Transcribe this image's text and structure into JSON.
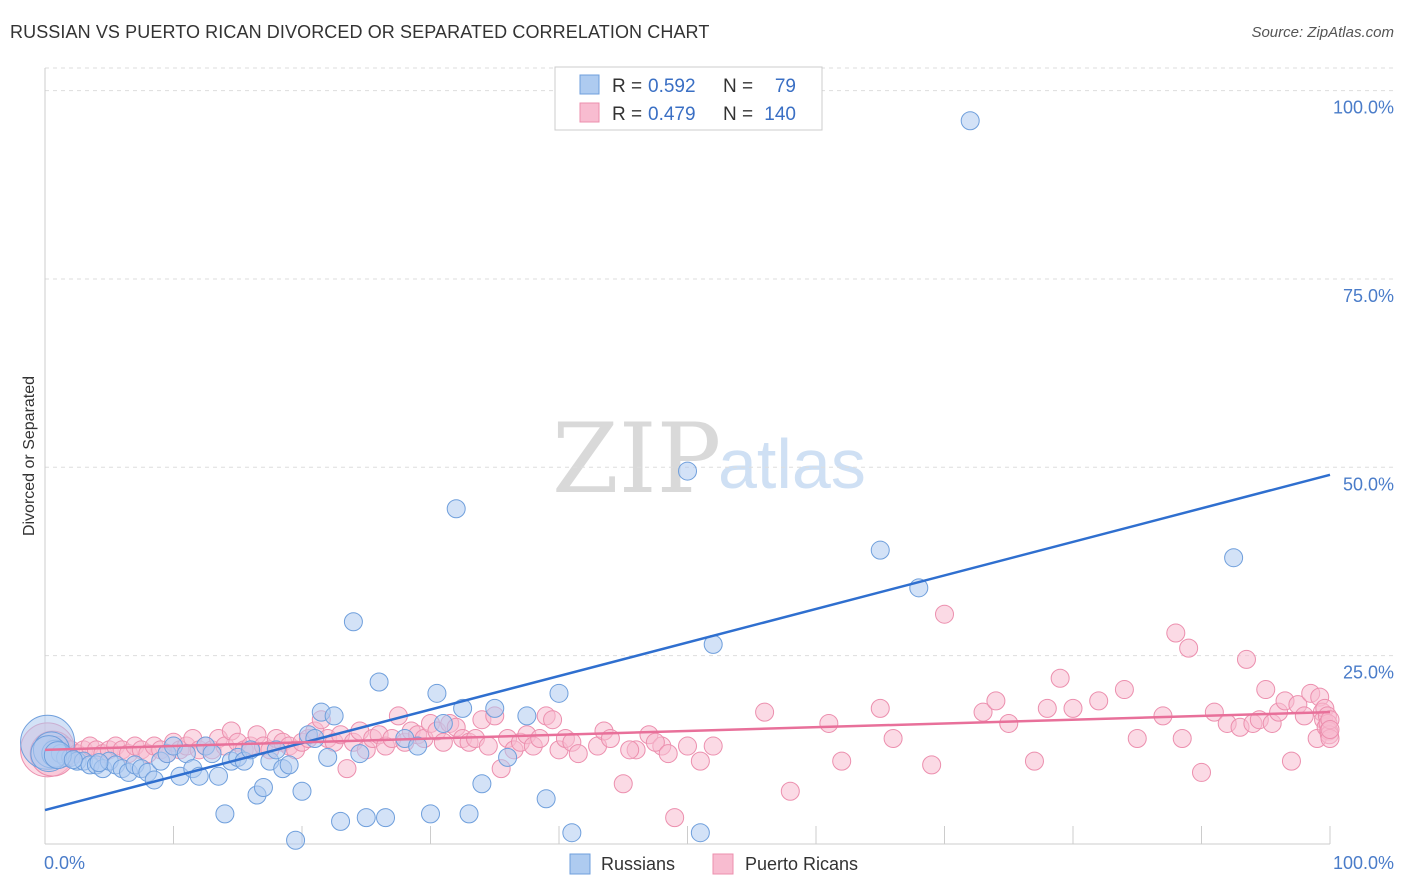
{
  "header": {
    "title": "RUSSIAN VS PUERTO RICAN DIVORCED OR SEPARATED CORRELATION CHART",
    "source": "Source: ZipAtlas.com"
  },
  "watermark": {
    "zip": "ZIP",
    "atlas": "atlas"
  },
  "legend": {
    "rows": [
      {
        "r_label": "R =",
        "r_value": "0.592",
        "n_label": "N =",
        "n_value": "79"
      },
      {
        "r_label": "R =",
        "r_value": "0.479",
        "n_label": "N =",
        "n_value": "140"
      }
    ]
  },
  "bottom_legend": {
    "russians": "Russians",
    "puerto_ricans": "Puerto Ricans"
  },
  "colors": {
    "russian_fill": "#aecbf0",
    "russian_stroke": "#6f9fdc",
    "russian_line": "#2f6fcf",
    "pr_fill": "#f8bcd0",
    "pr_stroke": "#ec8fae",
    "pr_line": "#e8709a",
    "grid": "#dddddd",
    "tick_text": "#4a7cc9"
  },
  "chart_data": {
    "type": "scatter",
    "title": "RUSSIAN VS PUERTO RICAN DIVORCED OR SEPARATED CORRELATION CHART",
    "xlabel": "",
    "ylabel": "Divorced or Separated",
    "xlim": [
      0,
      100
    ],
    "ylim": [
      0,
      103
    ],
    "x_tick_labels": [
      "0.0%",
      "100.0%"
    ],
    "y_ticks": [
      25,
      50,
      75,
      100
    ],
    "y_tick_labels": [
      "25.0%",
      "50.0%",
      "75.0%",
      "100.0%"
    ],
    "grid": true,
    "legend_position": "top-center",
    "series": [
      {
        "name": "Russians",
        "r": 0.592,
        "n": 79,
        "trend": [
          [
            0,
            4.5
          ],
          [
            100,
            49
          ]
        ],
        "points": [
          [
            0.2,
            13.5,
            3
          ],
          [
            0.5,
            12.5,
            2
          ],
          [
            0.8,
            12,
            1.5
          ],
          [
            1.2,
            12,
            1
          ],
          [
            1.6,
            11.5,
            1
          ],
          [
            2,
            11.5,
            1
          ],
          [
            2.5,
            11,
            1
          ],
          [
            3,
            11,
            1
          ],
          [
            3.5,
            10.5,
            1
          ],
          [
            4,
            10.5,
            1
          ],
          [
            4.5,
            10,
            1
          ],
          [
            5,
            11,
            1
          ],
          [
            5.5,
            10.5,
            1
          ],
          [
            6,
            10,
            1
          ],
          [
            6.5,
            9.5,
            1
          ],
          [
            7,
            10.5,
            1
          ],
          [
            7.5,
            10,
            1
          ],
          [
            8,
            9.5,
            1
          ],
          [
            8.5,
            8.5,
            1
          ],
          [
            9,
            11,
            1
          ],
          [
            9.5,
            12,
            1
          ],
          [
            10,
            13,
            1
          ],
          [
            10.5,
            9,
            1
          ],
          [
            11,
            12,
            1
          ],
          [
            11.5,
            10,
            1
          ],
          [
            12,
            9,
            1
          ],
          [
            12.5,
            13,
            1
          ],
          [
            13,
            12,
            1
          ],
          [
            13.5,
            9,
            1
          ],
          [
            14,
            4,
            1
          ],
          [
            14.5,
            11,
            1
          ],
          [
            15,
            11.5,
            1
          ],
          [
            15.5,
            11,
            1
          ],
          [
            16,
            12.5,
            1
          ],
          [
            16.5,
            6.5,
            1
          ],
          [
            17,
            7.5,
            1
          ],
          [
            17.5,
            11,
            1
          ],
          [
            18,
            12.5,
            1
          ],
          [
            18.5,
            10,
            1
          ],
          [
            19,
            10.5,
            1
          ],
          [
            19.5,
            0.5,
            1
          ],
          [
            20,
            7,
            1
          ],
          [
            20.5,
            14.5,
            1
          ],
          [
            21,
            14,
            1
          ],
          [
            21.5,
            17.5,
            1
          ],
          [
            22,
            11.5,
            1
          ],
          [
            22.5,
            17,
            1
          ],
          [
            23,
            3,
            1
          ],
          [
            24,
            29.5,
            1
          ],
          [
            24.5,
            12,
            1
          ],
          [
            25,
            3.5,
            1
          ],
          [
            26,
            21.5,
            1
          ],
          [
            26.5,
            3.5,
            1
          ],
          [
            28,
            14,
            1
          ],
          [
            29,
            13,
            1
          ],
          [
            30,
            4,
            1
          ],
          [
            30.5,
            20,
            1
          ],
          [
            31,
            16,
            1
          ],
          [
            32,
            44.5,
            1
          ],
          [
            32.5,
            18,
            1
          ],
          [
            33,
            4,
            1
          ],
          [
            34,
            8,
            1
          ],
          [
            35,
            18,
            1
          ],
          [
            36,
            11.5,
            1
          ],
          [
            37.5,
            17,
            1
          ],
          [
            39,
            6,
            1
          ],
          [
            40,
            20,
            1
          ],
          [
            41,
            1.5,
            1
          ],
          [
            50,
            49.5,
            1
          ],
          [
            51,
            1.5,
            1
          ],
          [
            52,
            26.5,
            1
          ],
          [
            65,
            39,
            1
          ],
          [
            68,
            34,
            1
          ],
          [
            72,
            96,
            1
          ],
          [
            92.5,
            38,
            1
          ],
          [
            0.3,
            12,
            2
          ],
          [
            1,
            11.8,
            1.5
          ],
          [
            2.2,
            11.2,
            1
          ],
          [
            4.2,
            10.8,
            1
          ]
        ]
      },
      {
        "name": "Puerto Ricans",
        "r": 0.479,
        "n": 140,
        "trend": [
          [
            0,
            12.5
          ],
          [
            100,
            17.5
          ]
        ],
        "points": [
          [
            0.2,
            12.5,
            3
          ],
          [
            0.6,
            12,
            2.5
          ],
          [
            1,
            12.5,
            1.5
          ],
          [
            1.5,
            13,
            1
          ],
          [
            2,
            12.5,
            1
          ],
          [
            2.5,
            12,
            1
          ],
          [
            3,
            12.5,
            1
          ],
          [
            3.5,
            13,
            1
          ],
          [
            4,
            12.5,
            1
          ],
          [
            4.5,
            12,
            1
          ],
          [
            5,
            12.5,
            1
          ],
          [
            5.5,
            13,
            1
          ],
          [
            6,
            12.5,
            1
          ],
          [
            6.5,
            12,
            1
          ],
          [
            7,
            13,
            1
          ],
          [
            7.5,
            12.5,
            1
          ],
          [
            8,
            12,
            1
          ],
          [
            8.5,
            13,
            1
          ],
          [
            9,
            12.5,
            1
          ],
          [
            9.5,
            12,
            1
          ],
          [
            10,
            13.5,
            1
          ],
          [
            10.5,
            12.5,
            1
          ],
          [
            11,
            13,
            1
          ],
          [
            11.5,
            14,
            1
          ],
          [
            12,
            12.5,
            1
          ],
          [
            12.5,
            13,
            1
          ],
          [
            13,
            12.5,
            1
          ],
          [
            13.5,
            14,
            1
          ],
          [
            14,
            13,
            1
          ],
          [
            14.5,
            15,
            1
          ],
          [
            15,
            13.5,
            1
          ],
          [
            15.5,
            12.5,
            1
          ],
          [
            16,
            13,
            1
          ],
          [
            16.5,
            14.5,
            1
          ],
          [
            17,
            13,
            1
          ],
          [
            17.5,
            12.5,
            1
          ],
          [
            18,
            14,
            1
          ],
          [
            18.5,
            13.5,
            1
          ],
          [
            19,
            13,
            1
          ],
          [
            19.5,
            12.5,
            1
          ],
          [
            20,
            13.5,
            1
          ],
          [
            20.5,
            14,
            1
          ],
          [
            21,
            15,
            1
          ],
          [
            21.5,
            16.5,
            1
          ],
          [
            22,
            14,
            1
          ],
          [
            22.5,
            13.5,
            1
          ],
          [
            23,
            14.5,
            1
          ],
          [
            23.5,
            10,
            1
          ],
          [
            24,
            13.5,
            1
          ],
          [
            24.5,
            15,
            1
          ],
          [
            25,
            12.5,
            1
          ],
          [
            25.5,
            14,
            1
          ],
          [
            26,
            14.5,
            1
          ],
          [
            26.5,
            13,
            1
          ],
          [
            27,
            14,
            1
          ],
          [
            27.5,
            17,
            1
          ],
          [
            28,
            13.5,
            1
          ],
          [
            28.5,
            15,
            1
          ],
          [
            29,
            14.5,
            1
          ],
          [
            29.5,
            14,
            1
          ],
          [
            30,
            16,
            1
          ],
          [
            30.5,
            15,
            1
          ],
          [
            31,
            13.5,
            1
          ],
          [
            31.5,
            16,
            1
          ],
          [
            32,
            15.5,
            1
          ],
          [
            32.5,
            14,
            1
          ],
          [
            33,
            13.5,
            1
          ],
          [
            33.5,
            14,
            1
          ],
          [
            34,
            16.5,
            1
          ],
          [
            34.5,
            13,
            1
          ],
          [
            35,
            17,
            1
          ],
          [
            35.5,
            10,
            1
          ],
          [
            36,
            14,
            1
          ],
          [
            36.5,
            12.5,
            1
          ],
          [
            37,
            13.5,
            1
          ],
          [
            37.5,
            14.5,
            1
          ],
          [
            38,
            13,
            1
          ],
          [
            38.5,
            14,
            1
          ],
          [
            39,
            17,
            1
          ],
          [
            39.5,
            16.5,
            1
          ],
          [
            40,
            12.5,
            1
          ],
          [
            40.5,
            14,
            1
          ],
          [
            41,
            13.5,
            1
          ],
          [
            41.5,
            12,
            1
          ],
          [
            43,
            13,
            1
          ],
          [
            43.5,
            15,
            1
          ],
          [
            44,
            14,
            1
          ],
          [
            45,
            8,
            1
          ],
          [
            46,
            12.5,
            1
          ],
          [
            47,
            14.5,
            1
          ],
          [
            48,
            13,
            1
          ],
          [
            49,
            3.5,
            1
          ],
          [
            51,
            11,
            1
          ],
          [
            52,
            13,
            1
          ],
          [
            56,
            17.5,
            1
          ],
          [
            58,
            7,
            1
          ],
          [
            61,
            16,
            1
          ],
          [
            62,
            11,
            1
          ],
          [
            65,
            18,
            1
          ],
          [
            66,
            14,
            1
          ],
          [
            69,
            10.5,
            1
          ],
          [
            70,
            30.5,
            1
          ],
          [
            73,
            17.5,
            1
          ],
          [
            74,
            19,
            1
          ],
          [
            75,
            16,
            1
          ],
          [
            77,
            11,
            1
          ],
          [
            78,
            18,
            1
          ],
          [
            79,
            22,
            1
          ],
          [
            80,
            18,
            1
          ],
          [
            82,
            19,
            1
          ],
          [
            84,
            20.5,
            1
          ],
          [
            85,
            14,
            1
          ],
          [
            87,
            17,
            1
          ],
          [
            88,
            28,
            1
          ],
          [
            88.5,
            14,
            1
          ],
          [
            89,
            26,
            1
          ],
          [
            90,
            9.5,
            1
          ],
          [
            91,
            17.5,
            1
          ],
          [
            92,
            16,
            1
          ],
          [
            93,
            15.5,
            1
          ],
          [
            93.5,
            24.5,
            1
          ],
          [
            94,
            16,
            1
          ],
          [
            94.5,
            16.5,
            1
          ],
          [
            95,
            20.5,
            1
          ],
          [
            95.5,
            16,
            1
          ],
          [
            96,
            17.5,
            1
          ],
          [
            96.5,
            19,
            1
          ],
          [
            97,
            11,
            1
          ],
          [
            97.5,
            18.5,
            1
          ],
          [
            98,
            17,
            1
          ],
          [
            98.5,
            20,
            1
          ],
          [
            99,
            14,
            1
          ],
          [
            99.2,
            19.5,
            1
          ],
          [
            99.4,
            17.5,
            1
          ],
          [
            99.5,
            16.5,
            1
          ],
          [
            99.6,
            18,
            1
          ],
          [
            99.7,
            15.5,
            1
          ],
          [
            99.8,
            17,
            1
          ],
          [
            99.85,
            16,
            1
          ],
          [
            99.9,
            15,
            1
          ],
          [
            99.95,
            14.5,
            1
          ],
          [
            100,
            14,
            1
          ],
          [
            100,
            16.5,
            1
          ],
          [
            100,
            15.2,
            1
          ],
          [
            45.5,
            12.5,
            1
          ],
          [
            47.5,
            13.5,
            1
          ],
          [
            48.5,
            12,
            1
          ],
          [
            50,
            13,
            1
          ]
        ]
      }
    ]
  }
}
